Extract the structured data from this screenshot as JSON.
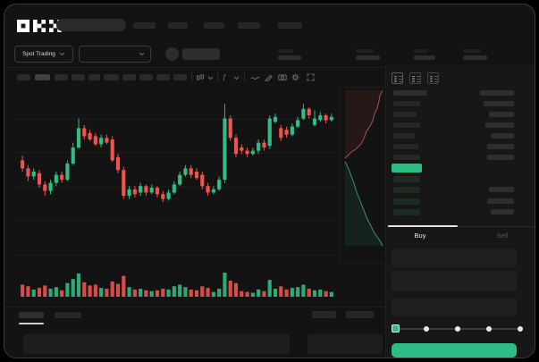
{
  "colors": {
    "green": "#2ebd85",
    "red": "#ef5350",
    "depth_ask_line": "#9f565c",
    "depth_bid_line": "#3f9077",
    "bid_row_tint": "#1d2b23",
    "window_bg": "#131313",
    "panel_bg": "#171717"
  },
  "header": {
    "logo_text": "OKX"
  },
  "subheader": {
    "market_selector": "Spot Trading"
  },
  "trade_panel": {
    "buy_label": "Buy",
    "sell_label": "Sell"
  },
  "orderbook": {
    "ask_price_widths": [
      30,
      26,
      30,
      24,
      28,
      30
    ],
    "ask_amount_widths": [
      34,
      28,
      32,
      26,
      30,
      30
    ],
    "bid_price_widths": [
      30,
      30,
      30,
      30
    ],
    "bid_amount_widths": [
      0,
      28,
      30,
      26
    ],
    "header_left_width": 38,
    "header_right_width": 38
  },
  "chart_data": {
    "type": "candlestick",
    "title": "",
    "xlabel": "",
    "ylabel": "",
    "scale_note": "No axis labels are visible in the screenshot; OHLC values are estimated on a relative 0-100 price scale read from candle pixel positions. v = relative volume 0-100.",
    "ylim": [
      30,
      100
    ],
    "grid": "horizontal-faint",
    "candles": [
      [
        62,
        65,
        55,
        57,
        30
      ],
      [
        57,
        59,
        49,
        52,
        26
      ],
      [
        52,
        57,
        50,
        55,
        18
      ],
      [
        54,
        56,
        45,
        47,
        22
      ],
      [
        47,
        49,
        40,
        43,
        28
      ],
      [
        43,
        50,
        41,
        48,
        20
      ],
      [
        48,
        55,
        46,
        53,
        24
      ],
      [
        53,
        55,
        48,
        50,
        16
      ],
      [
        50,
        62,
        49,
        60,
        34
      ],
      [
        60,
        73,
        59,
        70,
        44
      ],
      [
        70,
        88,
        69,
        82,
        58
      ],
      [
        82,
        84,
        75,
        77,
        36
      ],
      [
        79,
        81,
        74,
        75,
        28
      ],
      [
        77,
        79,
        71,
        72,
        30
      ],
      [
        72,
        78,
        70,
        76,
        22
      ],
      [
        76,
        78,
        72,
        73,
        20
      ],
      [
        75,
        77,
        61,
        62,
        38
      ],
      [
        64,
        66,
        54,
        56,
        32
      ],
      [
        56,
        58,
        38,
        40,
        52
      ],
      [
        40,
        46,
        38,
        44,
        24
      ],
      [
        44,
        46,
        39,
        41,
        18
      ],
      [
        42,
        48,
        40,
        46,
        20
      ],
      [
        46,
        47,
        40,
        42,
        16
      ],
      [
        42,
        47,
        41,
        45,
        14
      ],
      [
        45,
        46,
        39,
        41,
        16
      ],
      [
        41,
        43,
        36,
        38,
        20
      ],
      [
        38,
        44,
        37,
        42,
        18
      ],
      [
        42,
        49,
        41,
        47,
        26
      ],
      [
        47,
        55,
        46,
        53,
        30
      ],
      [
        53,
        59,
        52,
        57,
        24
      ],
      [
        57,
        59,
        51,
        53,
        18
      ],
      [
        55,
        57,
        50,
        51,
        16
      ],
      [
        53,
        55,
        44,
        46,
        26
      ],
      [
        46,
        48,
        40,
        42,
        22
      ],
      [
        42,
        46,
        41,
        44,
        12
      ],
      [
        44,
        52,
        43,
        50,
        20
      ],
      [
        50,
        97,
        48,
        88,
        60
      ],
      [
        88,
        90,
        74,
        76,
        40
      ],
      [
        76,
        78,
        64,
        66,
        34
      ],
      [
        70,
        72,
        66,
        68,
        14
      ],
      [
        68,
        70,
        64,
        66,
        12
      ],
      [
        66,
        70,
        65,
        68,
        10
      ],
      [
        68,
        75,
        66,
        73,
        18
      ],
      [
        73,
        75,
        68,
        70,
        14
      ],
      [
        71,
        90,
        69,
        88,
        42
      ],
      [
        86,
        91,
        85,
        89,
        20
      ],
      [
        82,
        84,
        74,
        76,
        26
      ],
      [
        81,
        83,
        76,
        78,
        18
      ],
      [
        78,
        85,
        77,
        83,
        22
      ],
      [
        83,
        89,
        82,
        87,
        24
      ],
      [
        88,
        97,
        87,
        94,
        30
      ],
      [
        94,
        95,
        88,
        90,
        20
      ],
      [
        84,
        93,
        83,
        88,
        16
      ],
      [
        87,
        92,
        86,
        90,
        18
      ],
      [
        90,
        91,
        85,
        87,
        14
      ],
      [
        87,
        91,
        86,
        89,
        12
      ]
    ],
    "depth": {
      "asks": [
        [
          48,
          4
        ],
        [
          45,
          10
        ],
        [
          44,
          16
        ],
        [
          42,
          24
        ],
        [
          39,
          30
        ],
        [
          37,
          38
        ],
        [
          34,
          44
        ],
        [
          30,
          50
        ],
        [
          27,
          58
        ],
        [
          24,
          64
        ],
        [
          18,
          70
        ],
        [
          12,
          74
        ],
        [
          6,
          80
        ]
      ],
      "bids": [
        [
          6,
          84
        ],
        [
          10,
          92
        ],
        [
          13,
          100
        ],
        [
          16,
          108
        ],
        [
          19,
          118
        ],
        [
          23,
          128
        ],
        [
          27,
          138
        ],
        [
          30,
          146
        ],
        [
          34,
          154
        ],
        [
          38,
          162
        ],
        [
          42,
          168
        ],
        [
          45,
          172
        ],
        [
          48,
          178
        ]
      ]
    }
  }
}
